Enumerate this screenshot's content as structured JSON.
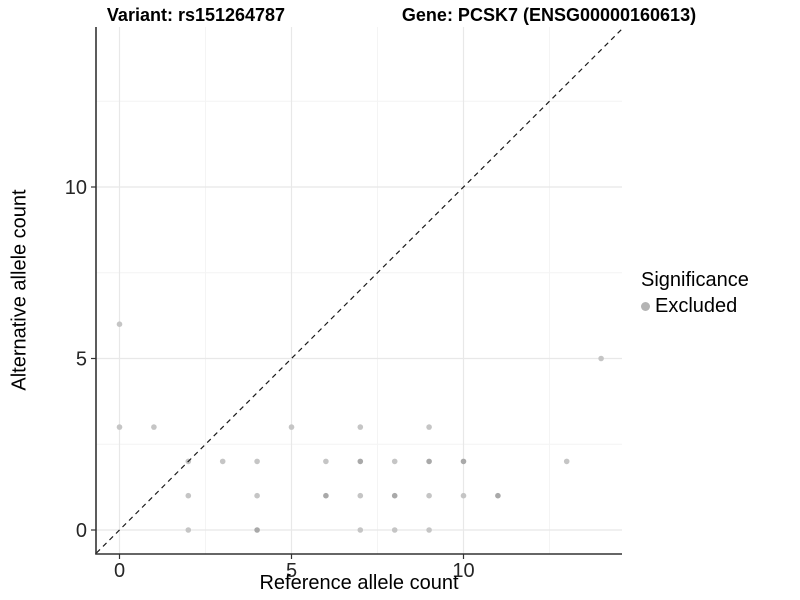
{
  "chart_data": {
    "type": "scatter",
    "titles": {
      "left": "Variant: rs151264787",
      "right": "Gene: PCSK7 (ENSG00000160613)"
    },
    "xlabel": "Reference allele count",
    "ylabel": "Alternative allele count",
    "xlim": [
      -0.67,
      14.63
    ],
    "ylim": [
      -0.67,
      14.66
    ],
    "x_ticks": [
      0,
      5,
      10
    ],
    "y_ticks": [
      0,
      5,
      10
    ],
    "x_minor_gridlines": [
      2.5,
      7.5,
      12.5
    ],
    "y_minor_gridlines": [
      2.5,
      7.5,
      12.5
    ],
    "grid": "on",
    "identity_line": {
      "type": "abline",
      "intercept": 0,
      "slope": 1,
      "style": "dashed"
    },
    "legend": {
      "title": "Significance",
      "position": "right",
      "items": [
        {
          "label": "Excluded",
          "color": "#b4b4b4"
        }
      ]
    },
    "series": [
      {
        "name": "Excluded",
        "points": [
          {
            "x": 0,
            "y": 6,
            "overlap": false
          },
          {
            "x": 14,
            "y": 5,
            "overlap": false
          },
          {
            "x": 0,
            "y": 3,
            "overlap": false
          },
          {
            "x": 1,
            "y": 3,
            "overlap": false
          },
          {
            "x": 5,
            "y": 3,
            "overlap": false
          },
          {
            "x": 7,
            "y": 3,
            "overlap": false
          },
          {
            "x": 9,
            "y": 3,
            "overlap": false
          },
          {
            "x": 2,
            "y": 2,
            "overlap": false
          },
          {
            "x": 3,
            "y": 2,
            "overlap": false
          },
          {
            "x": 4,
            "y": 2,
            "overlap": false
          },
          {
            "x": 6,
            "y": 2,
            "overlap": false
          },
          {
            "x": 7,
            "y": 2,
            "overlap": true
          },
          {
            "x": 8,
            "y": 2,
            "overlap": false
          },
          {
            "x": 9,
            "y": 2,
            "overlap": true
          },
          {
            "x": 10,
            "y": 2,
            "overlap": true
          },
          {
            "x": 13,
            "y": 2,
            "overlap": false
          },
          {
            "x": 2,
            "y": 1,
            "overlap": false
          },
          {
            "x": 4,
            "y": 1,
            "overlap": false
          },
          {
            "x": 6,
            "y": 1,
            "overlap": true
          },
          {
            "x": 7,
            "y": 1,
            "overlap": false
          },
          {
            "x": 8,
            "y": 1,
            "overlap": true
          },
          {
            "x": 9,
            "y": 1,
            "overlap": false
          },
          {
            "x": 10,
            "y": 1,
            "overlap": false
          },
          {
            "x": 11,
            "y": 1,
            "overlap": true
          },
          {
            "x": 2,
            "y": 0,
            "overlap": false
          },
          {
            "x": 4,
            "y": 0,
            "overlap": true
          },
          {
            "x": 7,
            "y": 0,
            "overlap": false
          },
          {
            "x": 8,
            "y": 0,
            "overlap": false
          },
          {
            "x": 9,
            "y": 0,
            "overlap": false
          }
        ]
      }
    ]
  },
  "colors": {
    "background": "#ffffff",
    "grid_major": "#e8e8e8",
    "grid_minor": "#f3f3f3",
    "axis_line": "#333333",
    "tick_text": "#262626",
    "identity_line": "#1b1b1b",
    "point_light": "#c5c5c5",
    "point_overlap": "#a9a9a9",
    "legend_dot": "#b4b4b4"
  }
}
